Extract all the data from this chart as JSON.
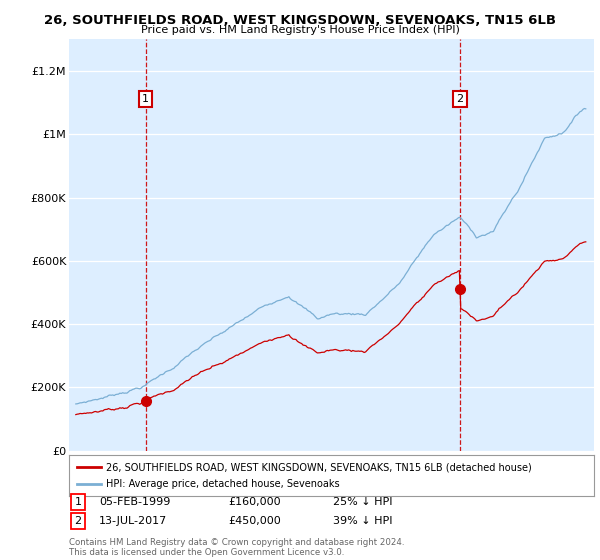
{
  "title1": "26, SOUTHFIELDS ROAD, WEST KINGSDOWN, SEVENOAKS, TN15 6LB",
  "title2": "Price paid vs. HM Land Registry's House Price Index (HPI)",
  "ylim": [
    0,
    1300000
  ],
  "yticks": [
    0,
    200000,
    400000,
    600000,
    800000,
    1000000,
    1200000
  ],
  "ytick_labels": [
    "£0",
    "£200K",
    "£400K",
    "£600K",
    "£800K",
    "£1M",
    "£1.2M"
  ],
  "purchase1_year": 1999.09,
  "purchase1_value": 160000,
  "purchase2_year": 2017.54,
  "purchase2_value": 450000,
  "red_line_color": "#cc0000",
  "blue_line_color": "#7bafd4",
  "chart_bg_color": "#ddeeff",
  "vline_color": "#cc0000",
  "legend_red_label": "26, SOUTHFIELDS ROAD, WEST KINGSDOWN, SEVENOAKS, TN15 6LB (detached house)",
  "legend_blue_label": "HPI: Average price, detached house, Sevenoaks",
  "table_row1": [
    "1",
    "05-FEB-1999",
    "£160,000",
    "25% ↓ HPI"
  ],
  "table_row2": [
    "2",
    "13-JUL-2017",
    "£450,000",
    "39% ↓ HPI"
  ],
  "footnote": "Contains HM Land Registry data © Crown copyright and database right 2024.\nThis data is licensed under the Open Government Licence v3.0.",
  "background_color": "#ffffff"
}
